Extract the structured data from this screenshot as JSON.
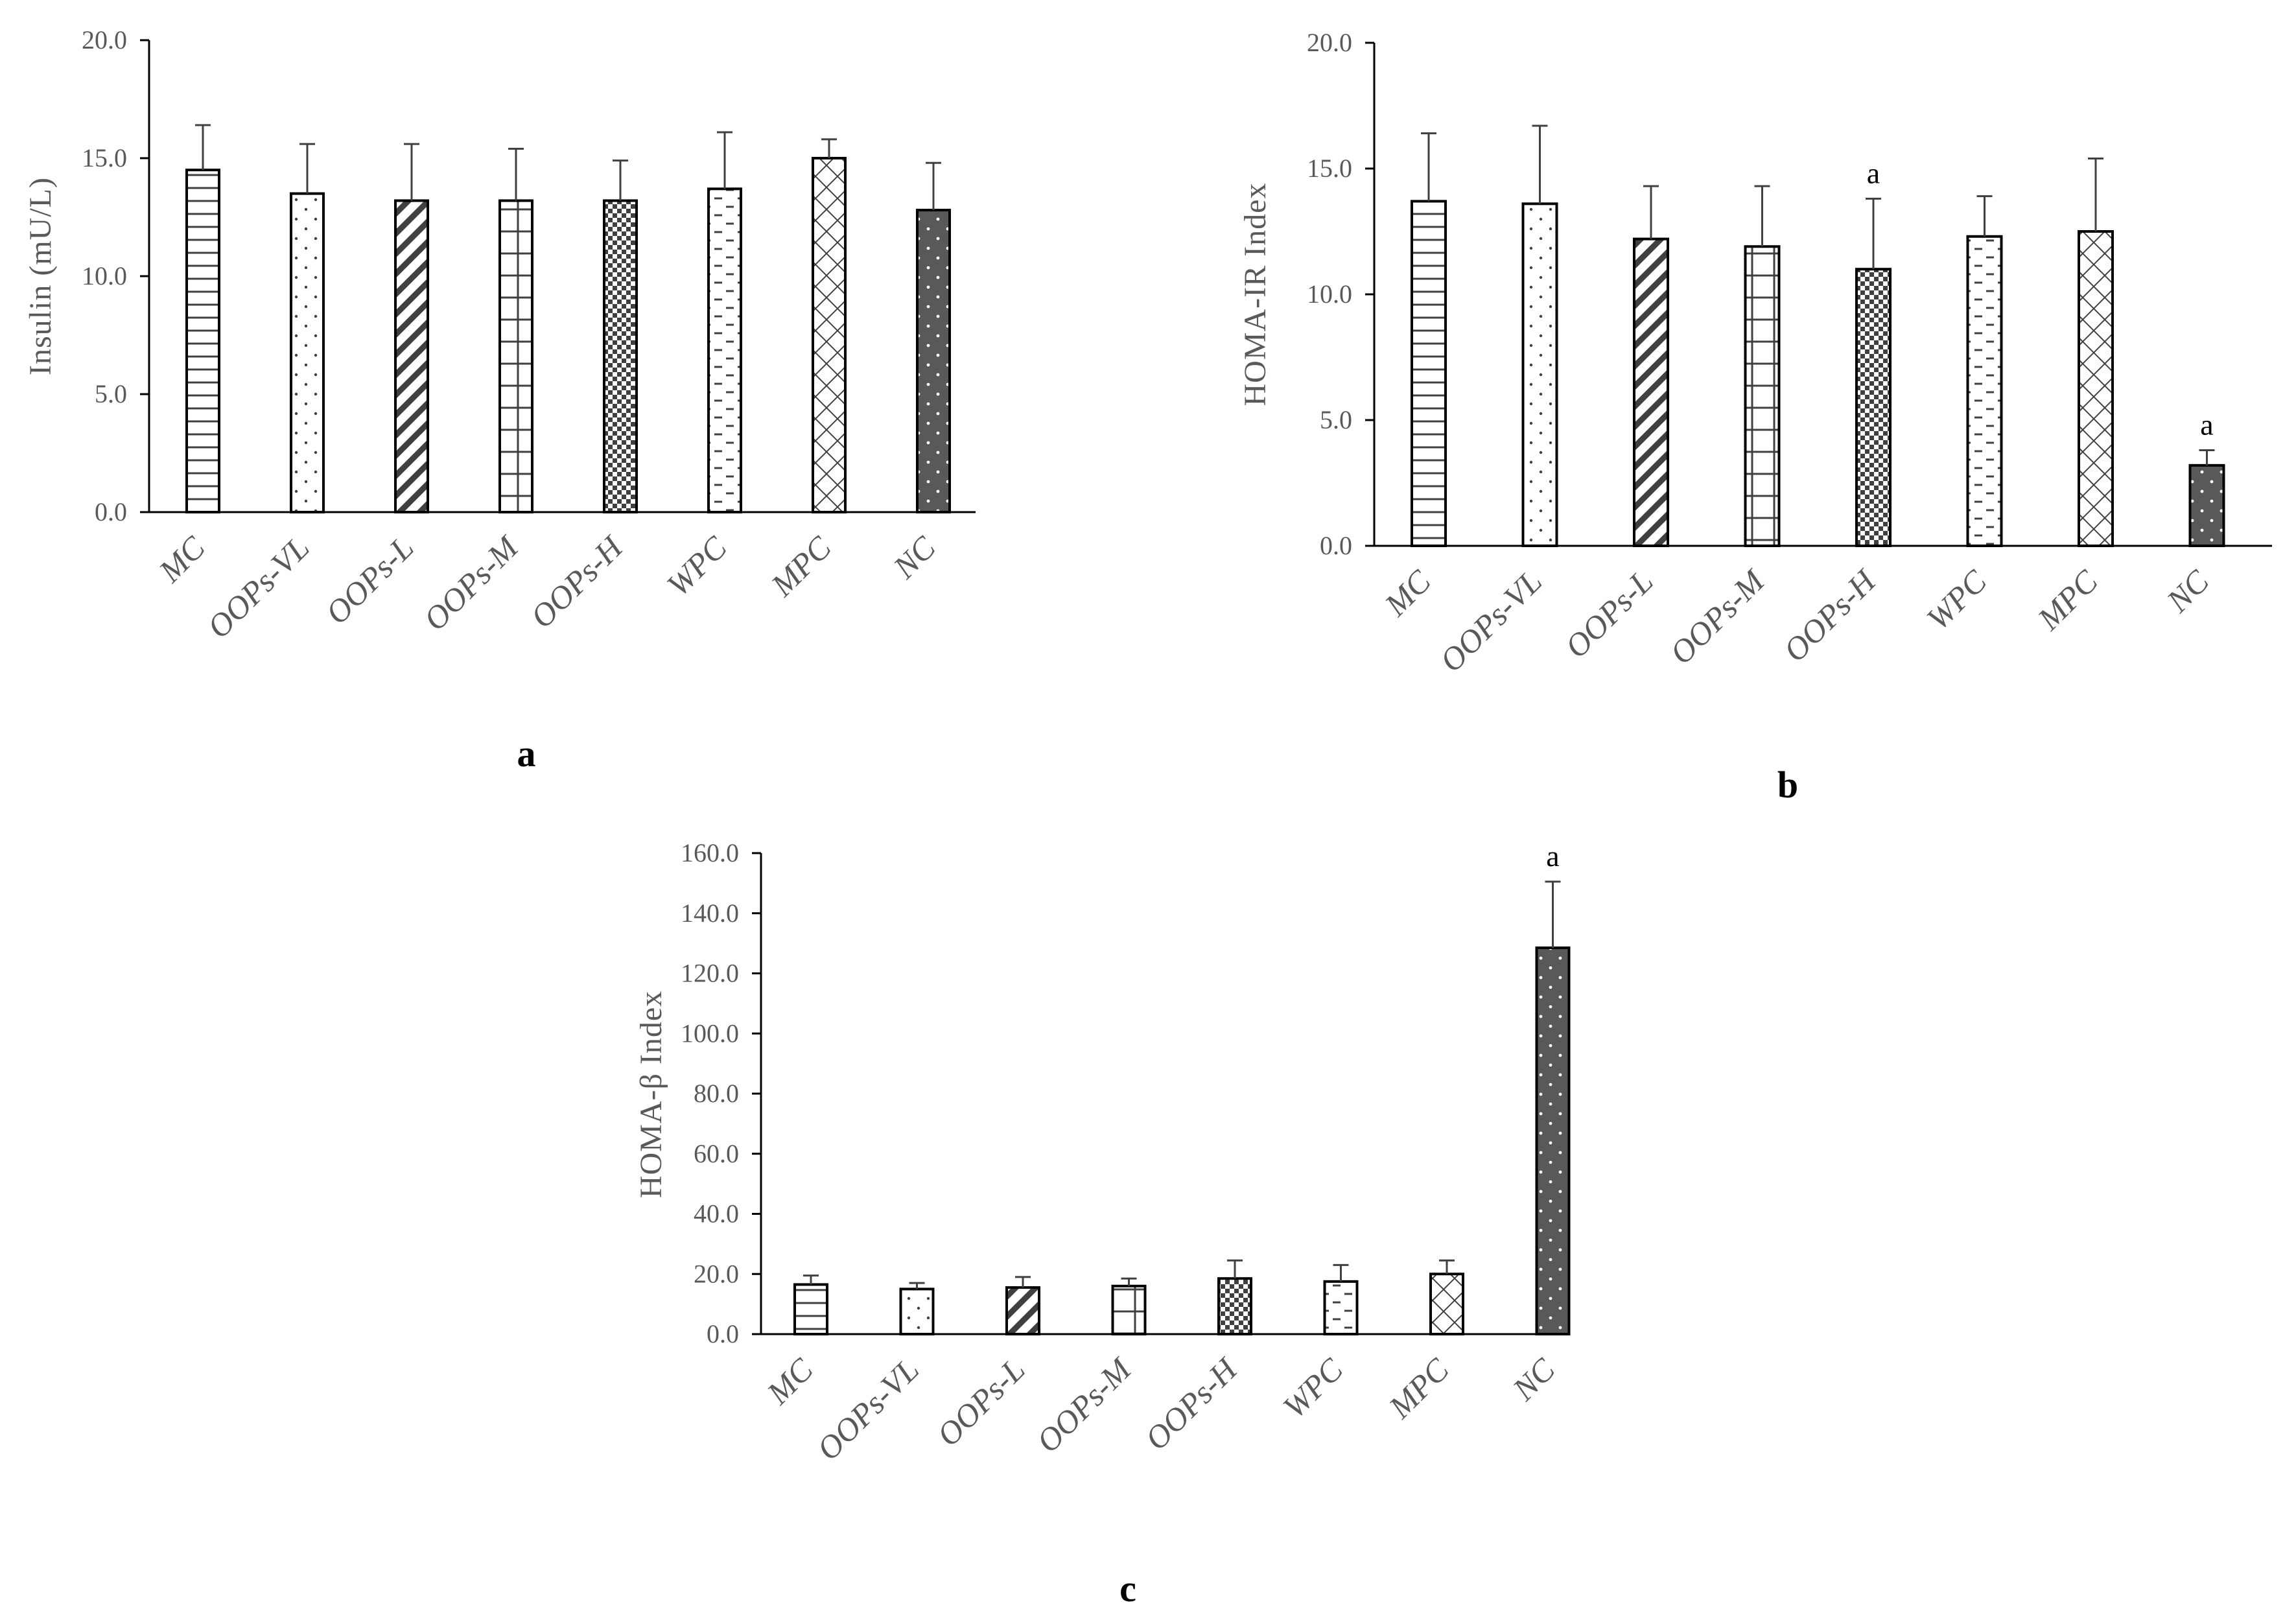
{
  "colors": {
    "bar_stroke": "#000000",
    "pattern_line": "#404040",
    "nc_fill": "#595959",
    "nc_dot": "#ffffff",
    "axis": "#000000",
    "error_bar": "#404040",
    "text": "#595959"
  },
  "chart_data": [
    {
      "id": "a",
      "type": "bar",
      "panel_label": "a",
      "title": "",
      "xlabel": "",
      "ylabel": "Insulin (mU/L)",
      "categories": [
        "MC",
        "OOPs-VL",
        "OOPs-L",
        "OOPs-M",
        "OOPs-H",
        "WPC",
        "MPC",
        "NC"
      ],
      "patterns": [
        "hlines",
        "dots",
        "diag",
        "grid",
        "checker",
        "dashes",
        "diamond",
        "solid-dots"
      ],
      "values": [
        14.5,
        13.5,
        13.2,
        13.2,
        13.2,
        13.7,
        15.0,
        12.8
      ],
      "errors": [
        1.9,
        2.1,
        2.4,
        2.2,
        1.7,
        2.4,
        0.8,
        2.0
      ],
      "significance": [
        "",
        "",
        "",
        "",
        "",
        "",
        "",
        ""
      ],
      "ylim": [
        0,
        20
      ],
      "yticks": [
        "0.0",
        "5.0",
        "10.0",
        "15.0",
        "20.0"
      ],
      "ytick_values": [
        0,
        5,
        10,
        15,
        20
      ],
      "grid": false
    },
    {
      "id": "b",
      "type": "bar",
      "panel_label": "b",
      "title": "",
      "xlabel": "",
      "ylabel": "HOMA-IR Index",
      "categories": [
        "MC",
        "OOPs-VL",
        "OOPs-L",
        "OOPs-M",
        "OOPs-H",
        "WPC",
        "MPC",
        "NC"
      ],
      "patterns": [
        "hlines",
        "dots",
        "diag",
        "grid",
        "checker",
        "dashes",
        "diamond",
        "solid-dots"
      ],
      "values": [
        13.7,
        13.6,
        12.2,
        11.9,
        11.0,
        12.3,
        12.5,
        3.2
      ],
      "errors": [
        2.7,
        3.1,
        2.1,
        2.4,
        2.8,
        1.6,
        2.9,
        0.6
      ],
      "significance": [
        "",
        "",
        "",
        "",
        "a",
        "",
        "",
        "a"
      ],
      "ylim": [
        0,
        20
      ],
      "yticks": [
        "0.0",
        "5.0",
        "10.0",
        "15.0",
        "20.0"
      ],
      "ytick_values": [
        0,
        5,
        10,
        15,
        20
      ],
      "grid": false
    },
    {
      "id": "c",
      "type": "bar",
      "panel_label": "c",
      "title": "",
      "xlabel": "",
      "ylabel": "HOMA-β Index",
      "categories": [
        "MC",
        "OOPs-VL",
        "OOPs-L",
        "OOPs-M",
        "OOPs-H",
        "WPC",
        "MPC",
        "NC"
      ],
      "patterns": [
        "hlines",
        "dots",
        "diag",
        "grid",
        "checker",
        "dashes",
        "diamond",
        "solid-dots"
      ],
      "values": [
        16.5,
        15.0,
        15.5,
        16.0,
        18.5,
        17.5,
        20.0,
        128.5
      ],
      "errors": [
        3.0,
        2.0,
        3.5,
        2.5,
        6.0,
        5.5,
        4.5,
        22.0
      ],
      "significance": [
        "",
        "",
        "",
        "",
        "",
        "",
        "",
        "a"
      ],
      "ylim": [
        0,
        160
      ],
      "yticks": [
        "0.0",
        "20.0",
        "40.0",
        "60.0",
        "80.0",
        "100.0",
        "120.0",
        "140.0",
        "160.0"
      ],
      "ytick_values": [
        0,
        20,
        40,
        60,
        80,
        100,
        120,
        140,
        160
      ],
      "grid": false
    }
  ]
}
